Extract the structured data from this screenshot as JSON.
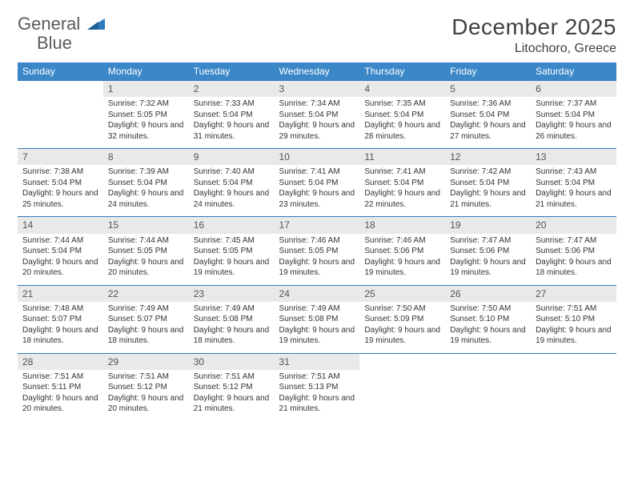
{
  "logo": {
    "word1": "General",
    "word2": "Blue"
  },
  "title": "December 2025",
  "location": "Litochoro, Greece",
  "colors": {
    "header_bg": "#3b87c8",
    "header_text": "#ffffff",
    "rule": "#2f7bbf",
    "daynum_bg": "#e9e9e9",
    "text": "#333333",
    "logo_gray": "#5a5a5a",
    "logo_blue": "#2f7bbf"
  },
  "day_names": [
    "Sunday",
    "Monday",
    "Tuesday",
    "Wednesday",
    "Thursday",
    "Friday",
    "Saturday"
  ],
  "weeks": [
    [
      null,
      {
        "n": "1",
        "sr": "7:32 AM",
        "ss": "5:05 PM",
        "dl": "9 hours and 32 minutes."
      },
      {
        "n": "2",
        "sr": "7:33 AM",
        "ss": "5:04 PM",
        "dl": "9 hours and 31 minutes."
      },
      {
        "n": "3",
        "sr": "7:34 AM",
        "ss": "5:04 PM",
        "dl": "9 hours and 29 minutes."
      },
      {
        "n": "4",
        "sr": "7:35 AM",
        "ss": "5:04 PM",
        "dl": "9 hours and 28 minutes."
      },
      {
        "n": "5",
        "sr": "7:36 AM",
        "ss": "5:04 PM",
        "dl": "9 hours and 27 minutes."
      },
      {
        "n": "6",
        "sr": "7:37 AM",
        "ss": "5:04 PM",
        "dl": "9 hours and 26 minutes."
      }
    ],
    [
      {
        "n": "7",
        "sr": "7:38 AM",
        "ss": "5:04 PM",
        "dl": "9 hours and 25 minutes."
      },
      {
        "n": "8",
        "sr": "7:39 AM",
        "ss": "5:04 PM",
        "dl": "9 hours and 24 minutes."
      },
      {
        "n": "9",
        "sr": "7:40 AM",
        "ss": "5:04 PM",
        "dl": "9 hours and 24 minutes."
      },
      {
        "n": "10",
        "sr": "7:41 AM",
        "ss": "5:04 PM",
        "dl": "9 hours and 23 minutes."
      },
      {
        "n": "11",
        "sr": "7:41 AM",
        "ss": "5:04 PM",
        "dl": "9 hours and 22 minutes."
      },
      {
        "n": "12",
        "sr": "7:42 AM",
        "ss": "5:04 PM",
        "dl": "9 hours and 21 minutes."
      },
      {
        "n": "13",
        "sr": "7:43 AM",
        "ss": "5:04 PM",
        "dl": "9 hours and 21 minutes."
      }
    ],
    [
      {
        "n": "14",
        "sr": "7:44 AM",
        "ss": "5:04 PM",
        "dl": "9 hours and 20 minutes."
      },
      {
        "n": "15",
        "sr": "7:44 AM",
        "ss": "5:05 PM",
        "dl": "9 hours and 20 minutes."
      },
      {
        "n": "16",
        "sr": "7:45 AM",
        "ss": "5:05 PM",
        "dl": "9 hours and 19 minutes."
      },
      {
        "n": "17",
        "sr": "7:46 AM",
        "ss": "5:05 PM",
        "dl": "9 hours and 19 minutes."
      },
      {
        "n": "18",
        "sr": "7:46 AM",
        "ss": "5:06 PM",
        "dl": "9 hours and 19 minutes."
      },
      {
        "n": "19",
        "sr": "7:47 AM",
        "ss": "5:06 PM",
        "dl": "9 hours and 19 minutes."
      },
      {
        "n": "20",
        "sr": "7:47 AM",
        "ss": "5:06 PM",
        "dl": "9 hours and 18 minutes."
      }
    ],
    [
      {
        "n": "21",
        "sr": "7:48 AM",
        "ss": "5:07 PM",
        "dl": "9 hours and 18 minutes."
      },
      {
        "n": "22",
        "sr": "7:49 AM",
        "ss": "5:07 PM",
        "dl": "9 hours and 18 minutes."
      },
      {
        "n": "23",
        "sr": "7:49 AM",
        "ss": "5:08 PM",
        "dl": "9 hours and 18 minutes."
      },
      {
        "n": "24",
        "sr": "7:49 AM",
        "ss": "5:08 PM",
        "dl": "9 hours and 19 minutes."
      },
      {
        "n": "25",
        "sr": "7:50 AM",
        "ss": "5:09 PM",
        "dl": "9 hours and 19 minutes."
      },
      {
        "n": "26",
        "sr": "7:50 AM",
        "ss": "5:10 PM",
        "dl": "9 hours and 19 minutes."
      },
      {
        "n": "27",
        "sr": "7:51 AM",
        "ss": "5:10 PM",
        "dl": "9 hours and 19 minutes."
      }
    ],
    [
      {
        "n": "28",
        "sr": "7:51 AM",
        "ss": "5:11 PM",
        "dl": "9 hours and 20 minutes."
      },
      {
        "n": "29",
        "sr": "7:51 AM",
        "ss": "5:12 PM",
        "dl": "9 hours and 20 minutes."
      },
      {
        "n": "30",
        "sr": "7:51 AM",
        "ss": "5:12 PM",
        "dl": "9 hours and 21 minutes."
      },
      {
        "n": "31",
        "sr": "7:51 AM",
        "ss": "5:13 PM",
        "dl": "9 hours and 21 minutes."
      },
      null,
      null,
      null
    ]
  ],
  "labels": {
    "sunrise": "Sunrise:",
    "sunset": "Sunset:",
    "daylight": "Daylight:"
  }
}
